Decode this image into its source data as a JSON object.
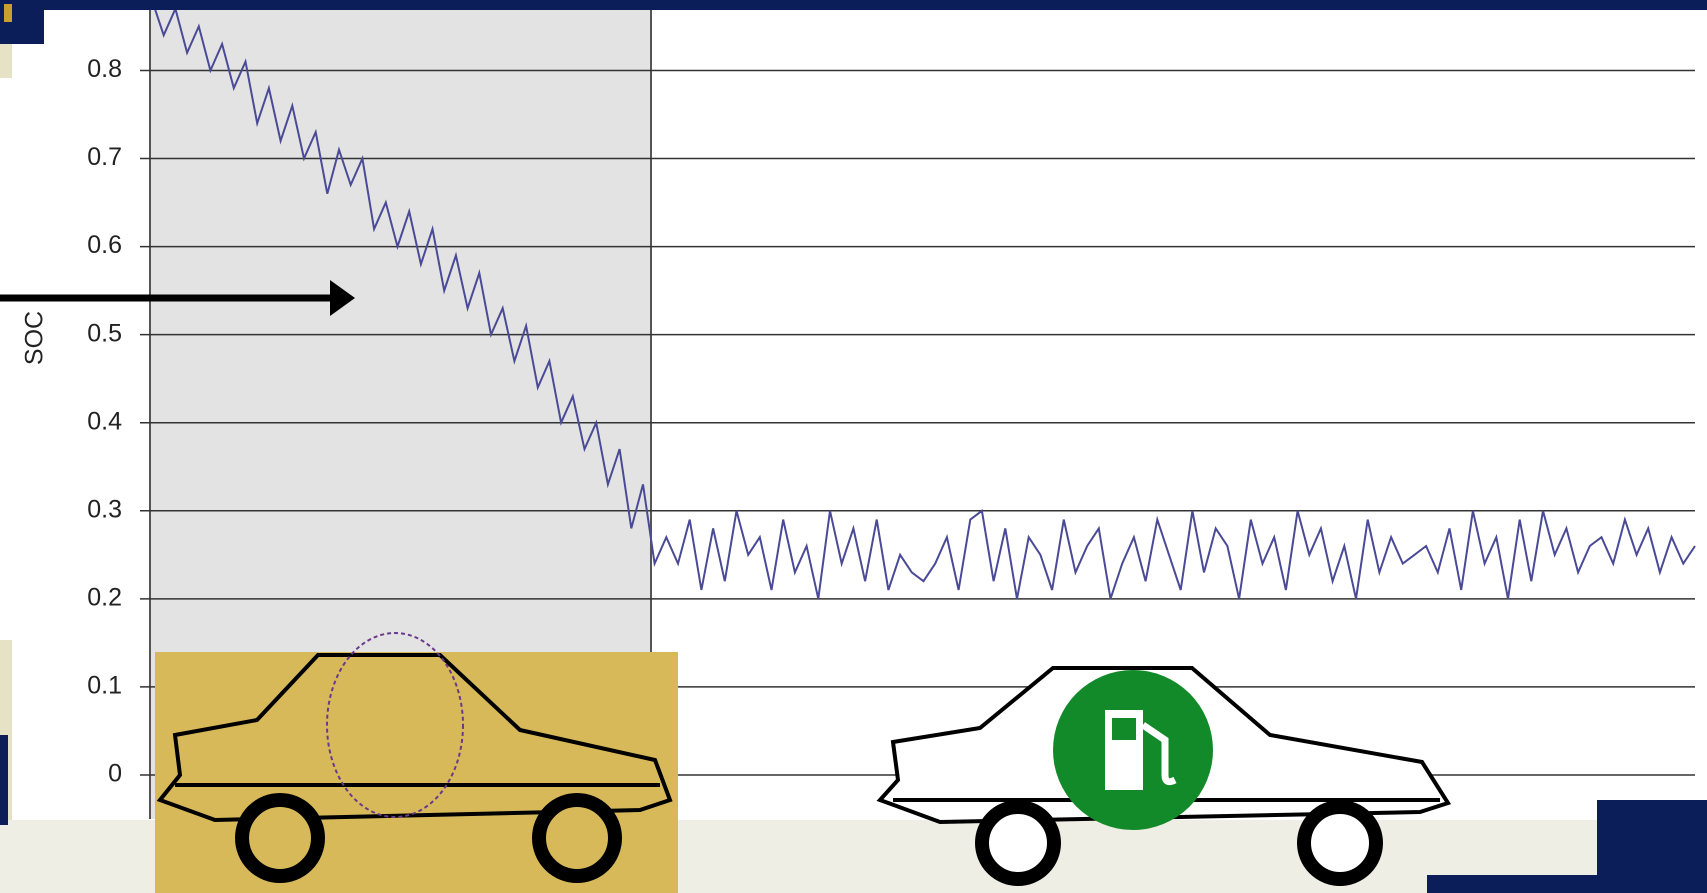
{
  "chart_data": {
    "type": "line",
    "y_label": "SOC",
    "series": [
      {
        "name": null,
        "color": "#4a4a96",
        "values": [
          0.88,
          0.84,
          0.87,
          0.82,
          0.85,
          0.8,
          0.83,
          0.78,
          0.81,
          0.74,
          0.78,
          0.72,
          0.76,
          0.7,
          0.73,
          0.66,
          0.71,
          0.67,
          0.7,
          0.62,
          0.65,
          0.6,
          0.64,
          0.58,
          0.62,
          0.55,
          0.59,
          0.53,
          0.57,
          0.5,
          0.53,
          0.47,
          0.51,
          0.44,
          0.47,
          0.4,
          0.43,
          0.37,
          0.4,
          0.33,
          0.37,
          0.28,
          0.33,
          0.24,
          0.27,
          0.24,
          0.29,
          0.21,
          0.28,
          0.22,
          0.3,
          0.25,
          0.27,
          0.21,
          0.29,
          0.23,
          0.26,
          0.2,
          0.3,
          0.24,
          0.28,
          0.22,
          0.29,
          0.21,
          0.25,
          0.23,
          0.22,
          0.24,
          0.27,
          0.21,
          0.29,
          0.3,
          0.22,
          0.28,
          0.2,
          0.27,
          0.25,
          0.21,
          0.29,
          0.23,
          0.26,
          0.28,
          0.2,
          0.24,
          0.27,
          0.22,
          0.29,
          0.25,
          0.21,
          0.3,
          0.23,
          0.28,
          0.26,
          0.2,
          0.29,
          0.24,
          0.27,
          0.21,
          0.3,
          0.25,
          0.28,
          0.22,
          0.26,
          0.2,
          0.29,
          0.23,
          0.27,
          0.24,
          0.25,
          0.26,
          0.23,
          0.28,
          0.21,
          0.3,
          0.24,
          0.27,
          0.2,
          0.29,
          0.22,
          0.3,
          0.25,
          0.28,
          0.23,
          0.26,
          0.27,
          0.24,
          0.29,
          0.25,
          0.28,
          0.23,
          0.27,
          0.24,
          0.26
        ]
      }
    ],
    "ylim": [
      -0.05,
      0.88
    ],
    "yticks": [
      0,
      0.1,
      0.2,
      0.3,
      0.4,
      0.5,
      0.6,
      0.7,
      0.8
    ],
    "grid": true
  }
}
